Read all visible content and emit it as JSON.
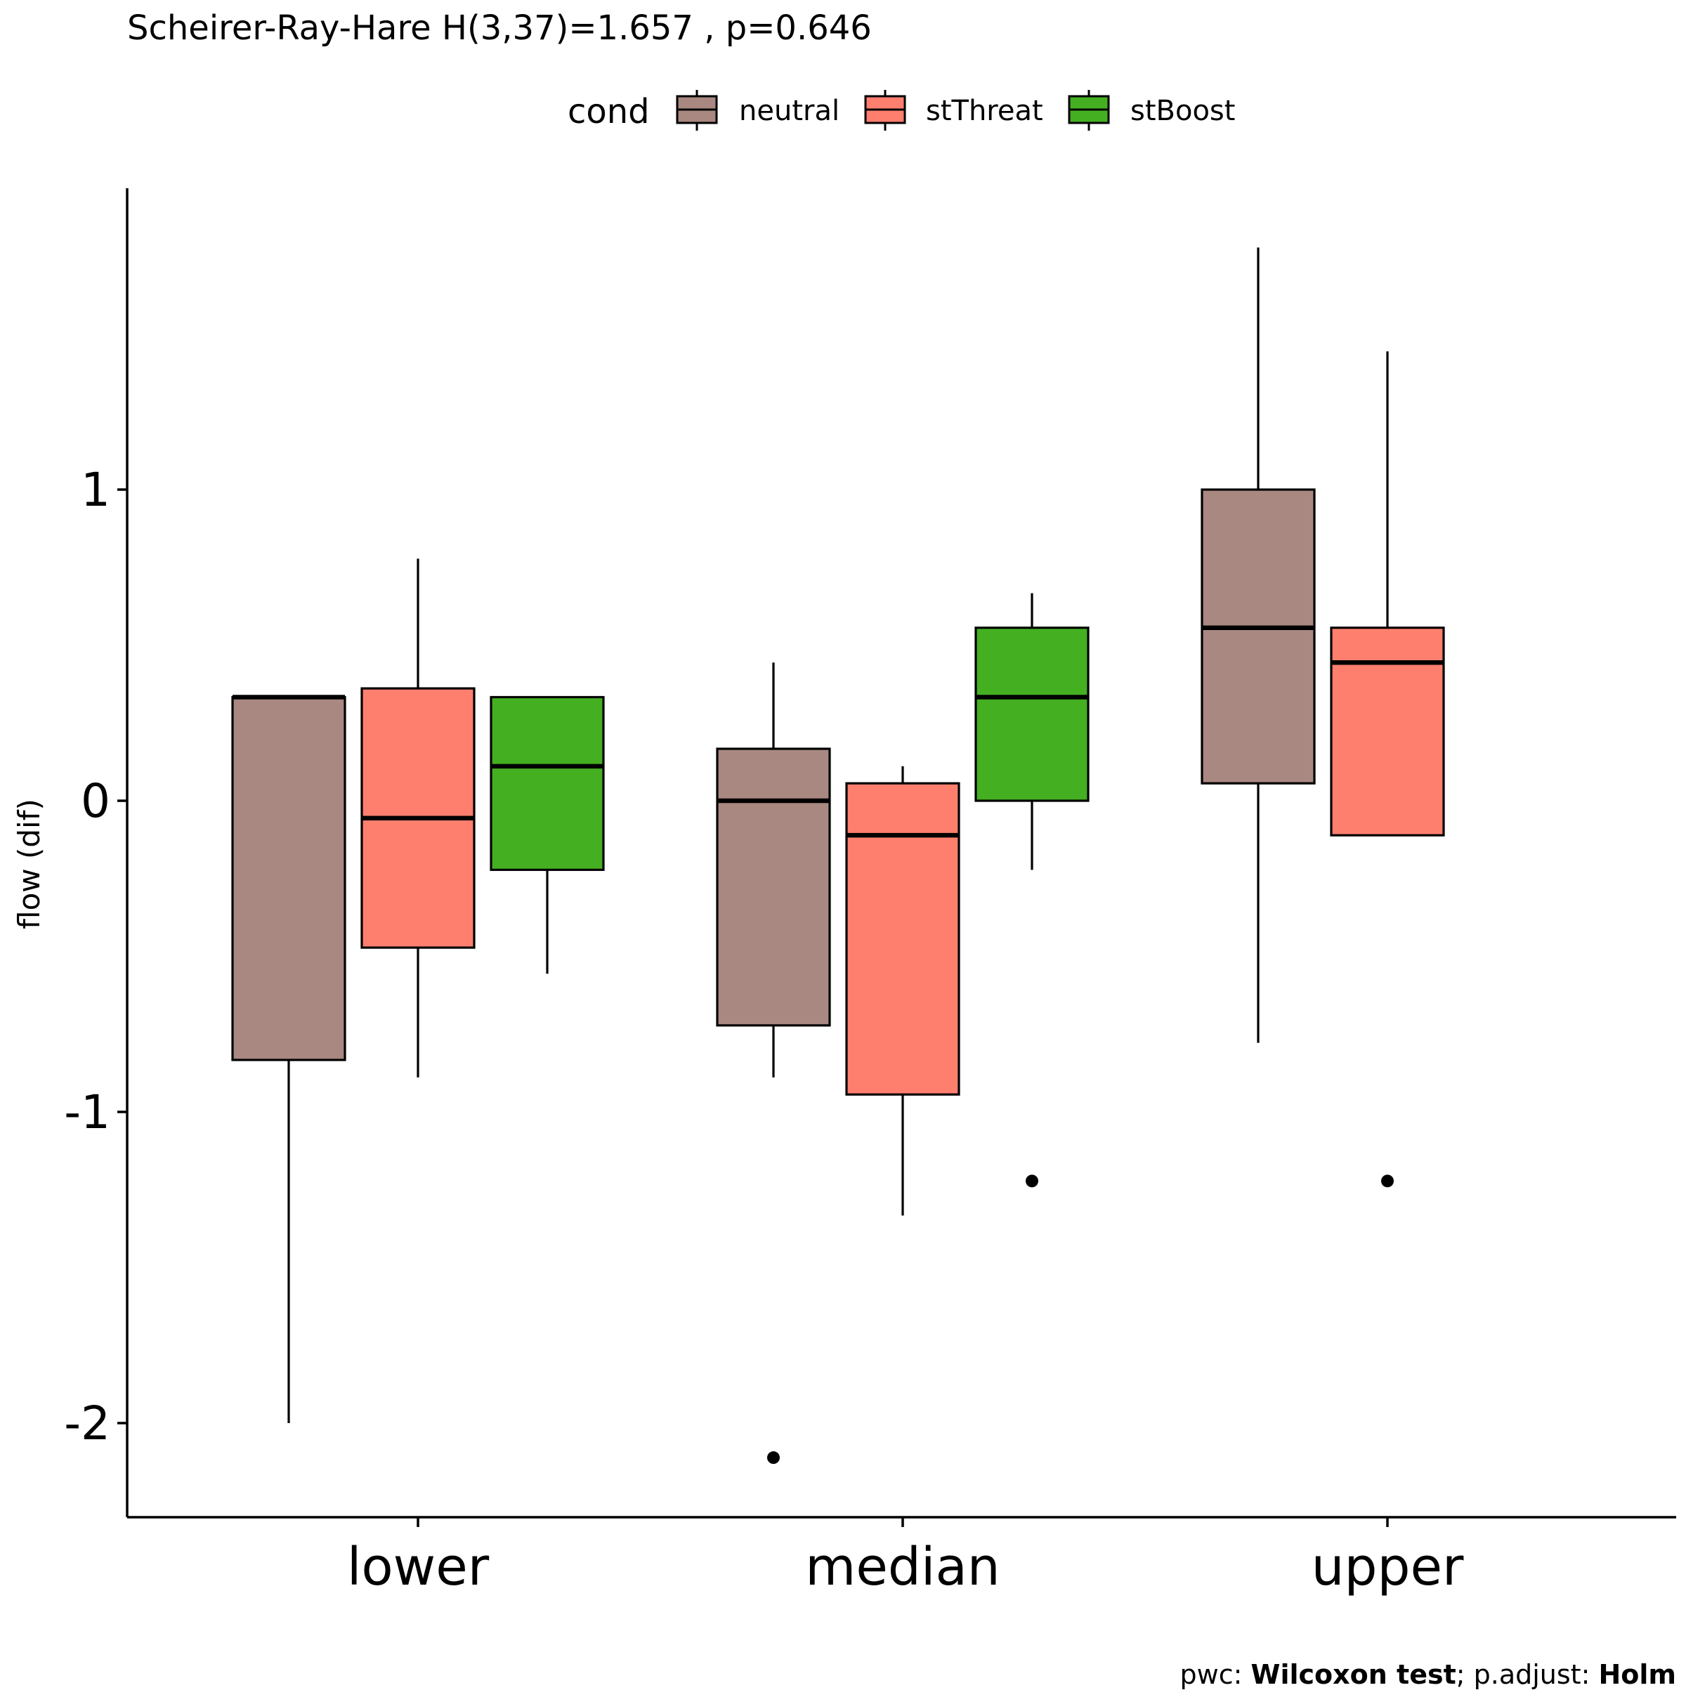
{
  "title": "Scheirer-Ray-Hare H(3,37)=1.657 , p=0.646",
  "caption": {
    "pwc_label": "pwc: ",
    "pwc_method": "Wilcoxon test",
    "adjust_label": "; p.adjust: ",
    "adjust_method": "Holm"
  },
  "legend": {
    "title": "cond",
    "items": [
      {
        "label": "neutral",
        "color": "#A88880"
      },
      {
        "label": "stThreat",
        "color": "#FF7F6F"
      },
      {
        "label": "stBoost",
        "color": "#45AF22"
      }
    ]
  },
  "chart_data": {
    "type": "boxplot",
    "ylabel": "flow (dif)",
    "xlabel": "",
    "categories": [
      "lower",
      "median",
      "upper"
    ],
    "yticks": [
      1,
      0,
      -1,
      -2
    ],
    "ytick_labels": [
      "1",
      "0",
      "-1",
      "-2"
    ],
    "ylim": [
      -2.3,
      1.96
    ],
    "series": [
      {
        "name": "neutral",
        "color": "#A88880",
        "boxes": [
          {
            "category": "lower",
            "whisker_low": -2.0,
            "q1": -0.833,
            "median": 0.333,
            "q3": 0.333,
            "whisker_high": 0.333,
            "outliers": []
          },
          {
            "category": "median",
            "whisker_low": -0.889,
            "q1": -0.722,
            "median": 0.0,
            "q3": 0.167,
            "whisker_high": 0.444,
            "outliers": [
              -2.111
            ]
          },
          {
            "category": "upper",
            "whisker_low": -0.778,
            "q1": 0.056,
            "median": 0.556,
            "q3": 1.0,
            "whisker_high": 1.778,
            "outliers": []
          }
        ]
      },
      {
        "name": "stThreat",
        "color": "#FF7F6F",
        "boxes": [
          {
            "category": "lower",
            "whisker_low": -0.889,
            "q1": -0.472,
            "median": -0.056,
            "q3": 0.361,
            "whisker_high": 0.778,
            "outliers": []
          },
          {
            "category": "median",
            "whisker_low": -1.333,
            "q1": -0.944,
            "median": -0.111,
            "q3": 0.056,
            "whisker_high": 0.111,
            "outliers": []
          },
          {
            "category": "upper",
            "whisker_low": -0.111,
            "q1": -0.111,
            "median": 0.444,
            "q3": 0.556,
            "whisker_high": 1.444,
            "outliers": [
              -1.222
            ]
          }
        ]
      },
      {
        "name": "stBoost",
        "color": "#45AF22",
        "boxes": [
          {
            "category": "lower",
            "whisker_low": -0.556,
            "q1": -0.222,
            "median": 0.111,
            "q3": 0.333,
            "whisker_high": 0.333,
            "outliers": []
          },
          {
            "category": "median",
            "whisker_low": -0.222,
            "q1": 0.0,
            "median": 0.333,
            "q3": 0.556,
            "whisker_high": 0.667,
            "outliers": [
              -1.222
            ]
          }
        ]
      }
    ]
  }
}
